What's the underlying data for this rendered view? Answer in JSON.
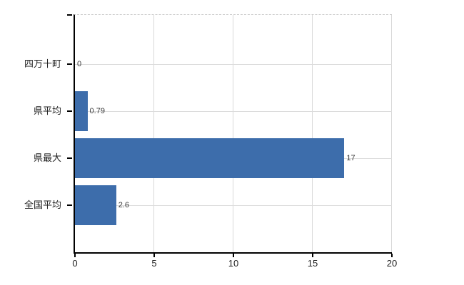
{
  "chart_data": {
    "type": "bar",
    "orientation": "horizontal",
    "title": "",
    "xlabel": "",
    "ylabel": "",
    "categories": [
      "四万十町",
      "県平均",
      "県最大",
      "全国平均"
    ],
    "values": [
      0,
      0.79,
      17,
      2.6
    ],
    "value_labels": [
      "0",
      "0.79",
      "17",
      "2.6"
    ],
    "xlim": [
      0,
      20
    ],
    "x_ticks": [
      "0",
      "5",
      "10",
      "15",
      "20"
    ],
    "x_tick_values": [
      0,
      5,
      10,
      15,
      20
    ],
    "grid": true,
    "legend": false,
    "bar_color": "#3d6dab",
    "grid_color": "#d9d9d9",
    "axis_color": "#000000",
    "text_color": "#1f1f1f",
    "background_color": "#ffffff"
  }
}
